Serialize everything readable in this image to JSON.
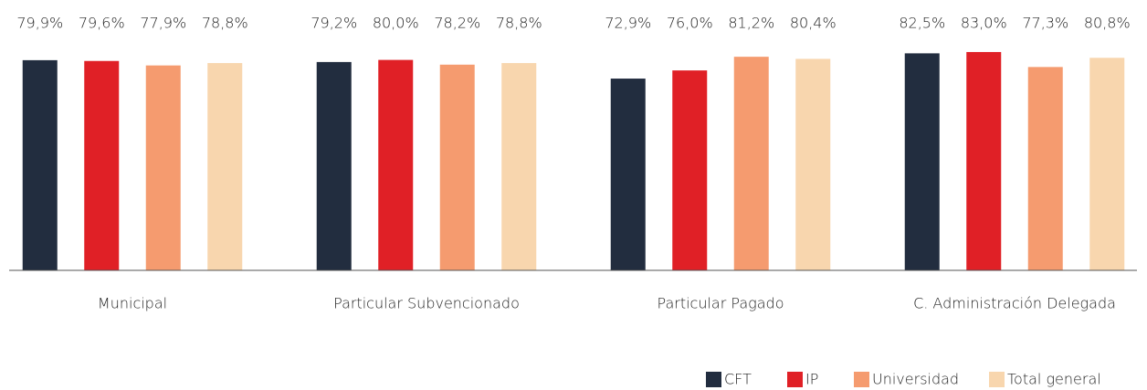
{
  "chart_data": {
    "type": "bar",
    "categories": [
      "Municipal",
      "Particular Subvencionado",
      "Particular Pagado",
      "C. Administración Delegada"
    ],
    "series": [
      {
        "name": "CFT",
        "color": "#222d3f",
        "values": [
          79.9,
          79.2,
          72.9,
          82.5
        ],
        "value_labels": [
          "79,9%",
          "79,2%",
          "72,9%",
          "82,5%"
        ]
      },
      {
        "name": "IP",
        "color": "#e02026",
        "values": [
          79.6,
          80.0,
          76.0,
          83.0
        ],
        "value_labels": [
          "79,6%",
          "80,0%",
          "76,0%",
          "83,0%"
        ]
      },
      {
        "name": "Universidad",
        "color": "#f59b6f",
        "values": [
          77.9,
          78.2,
          81.2,
          77.3
        ],
        "value_labels": [
          "77,9%",
          "78,2%",
          "81,2%",
          "77,3%"
        ]
      },
      {
        "name": "Total general",
        "color": "#f8d6ae",
        "values": [
          78.8,
          78.8,
          80.4,
          80.8
        ],
        "value_labels": [
          "78,8%",
          "78,8%",
          "80,4%",
          "80,8%"
        ]
      }
    ],
    "ylim": [
      0,
      100
    ],
    "legend": "bottom-right"
  }
}
